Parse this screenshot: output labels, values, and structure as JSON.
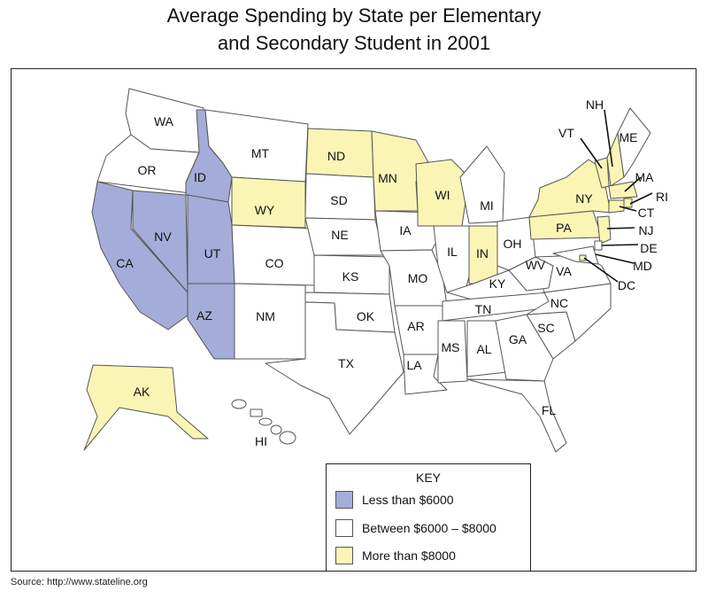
{
  "title_line1": "Average Spending by State per Elementary",
  "title_line2": "and Secondary Student in 2001",
  "colors": {
    "low": "#a4acd9",
    "mid": "#ffffff",
    "high": "#fbf5b5",
    "outline": "#555555"
  },
  "legend": {
    "title": "KEY",
    "items": [
      {
        "label": "Less than $6000",
        "category": "low"
      },
      {
        "label": "Between $6000 – $8000",
        "category": "mid"
      },
      {
        "label": "More than $8000",
        "category": "high"
      }
    ]
  },
  "states": [
    {
      "abbr": "WA",
      "category": "mid"
    },
    {
      "abbr": "OR",
      "category": "mid"
    },
    {
      "abbr": "CA",
      "category": "low"
    },
    {
      "abbr": "ID",
      "category": "low"
    },
    {
      "abbr": "NV",
      "category": "low"
    },
    {
      "abbr": "UT",
      "category": "low"
    },
    {
      "abbr": "AZ",
      "category": "low"
    },
    {
      "abbr": "MT",
      "category": "mid"
    },
    {
      "abbr": "WY",
      "category": "high"
    },
    {
      "abbr": "CO",
      "category": "mid"
    },
    {
      "abbr": "NM",
      "category": "mid"
    },
    {
      "abbr": "ND",
      "category": "high"
    },
    {
      "abbr": "SD",
      "category": "mid"
    },
    {
      "abbr": "NE",
      "category": "mid"
    },
    {
      "abbr": "KS",
      "category": "mid"
    },
    {
      "abbr": "OK",
      "category": "mid"
    },
    {
      "abbr": "TX",
      "category": "mid"
    },
    {
      "abbr": "MN",
      "category": "high"
    },
    {
      "abbr": "IA",
      "category": "mid"
    },
    {
      "abbr": "MO",
      "category": "mid"
    },
    {
      "abbr": "AR",
      "category": "mid"
    },
    {
      "abbr": "LA",
      "category": "mid"
    },
    {
      "abbr": "WI",
      "category": "high"
    },
    {
      "abbr": "IL",
      "category": "mid"
    },
    {
      "abbr": "MI",
      "category": "mid"
    },
    {
      "abbr": "IN",
      "category": "high"
    },
    {
      "abbr": "OH",
      "category": "mid"
    },
    {
      "abbr": "KY",
      "category": "mid"
    },
    {
      "abbr": "TN",
      "category": "mid"
    },
    {
      "abbr": "MS",
      "category": "mid"
    },
    {
      "abbr": "AL",
      "category": "mid"
    },
    {
      "abbr": "GA",
      "category": "mid"
    },
    {
      "abbr": "FL",
      "category": "mid"
    },
    {
      "abbr": "SC",
      "category": "mid"
    },
    {
      "abbr": "NC",
      "category": "mid"
    },
    {
      "abbr": "VA",
      "category": "mid"
    },
    {
      "abbr": "WV",
      "category": "mid"
    },
    {
      "abbr": "PA",
      "category": "high"
    },
    {
      "abbr": "NY",
      "category": "high"
    },
    {
      "abbr": "VT",
      "category": "high"
    },
    {
      "abbr": "NH",
      "category": "high"
    },
    {
      "abbr": "ME",
      "category": "mid"
    },
    {
      "abbr": "MA",
      "category": "high"
    },
    {
      "abbr": "RI",
      "category": "high"
    },
    {
      "abbr": "CT",
      "category": "high"
    },
    {
      "abbr": "NJ",
      "category": "high"
    },
    {
      "abbr": "DE",
      "category": "mid"
    },
    {
      "abbr": "MD",
      "category": "mid"
    },
    {
      "abbr": "DC",
      "category": "high"
    },
    {
      "abbr": "AK",
      "category": "high"
    },
    {
      "abbr": "HI",
      "category": "mid"
    }
  ],
  "source_text": "Source:  http://www.stateline.org"
}
